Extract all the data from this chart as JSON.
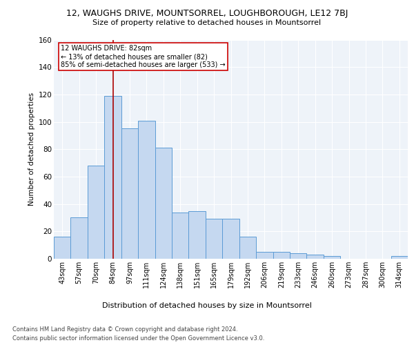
{
  "title": "12, WAUGHS DRIVE, MOUNTSORREL, LOUGHBOROUGH, LE12 7BJ",
  "subtitle": "Size of property relative to detached houses in Mountsorrel",
  "xlabel": "Distribution of detached houses by size in Mountsorrel",
  "ylabel": "Number of detached properties",
  "categories": [
    "43sqm",
    "57sqm",
    "70sqm",
    "84sqm",
    "97sqm",
    "111sqm",
    "124sqm",
    "138sqm",
    "151sqm",
    "165sqm",
    "179sqm",
    "192sqm",
    "206sqm",
    "219sqm",
    "233sqm",
    "246sqm",
    "260sqm",
    "273sqm",
    "287sqm",
    "300sqm",
    "314sqm"
  ],
  "values": [
    16,
    30,
    68,
    119,
    95,
    101,
    81,
    34,
    35,
    29,
    29,
    16,
    5,
    5,
    4,
    3,
    2,
    0,
    0,
    0,
    2
  ],
  "bar_color": "#c5d8f0",
  "bar_edge_color": "#5b9bd5",
  "property_line_label": "12 WAUGHS DRIVE: 82sqm",
  "annotation_line1": "← 13% of detached houses are smaller (82)",
  "annotation_line2": "85% of semi-detached houses are larger (533) →",
  "annotation_box_color": "#ffffff",
  "annotation_box_edge": "#cc0000",
  "vline_color": "#aa0000",
  "vline_x": 3.0,
  "ylim": [
    0,
    160
  ],
  "yticks": [
    0,
    20,
    40,
    60,
    80,
    100,
    120,
    140,
    160
  ],
  "footer1": "Contains HM Land Registry data © Crown copyright and database right 2024.",
  "footer2": "Contains public sector information licensed under the Open Government Licence v3.0.",
  "bg_color": "#eef3f9",
  "fig_bg": "#ffffff"
}
